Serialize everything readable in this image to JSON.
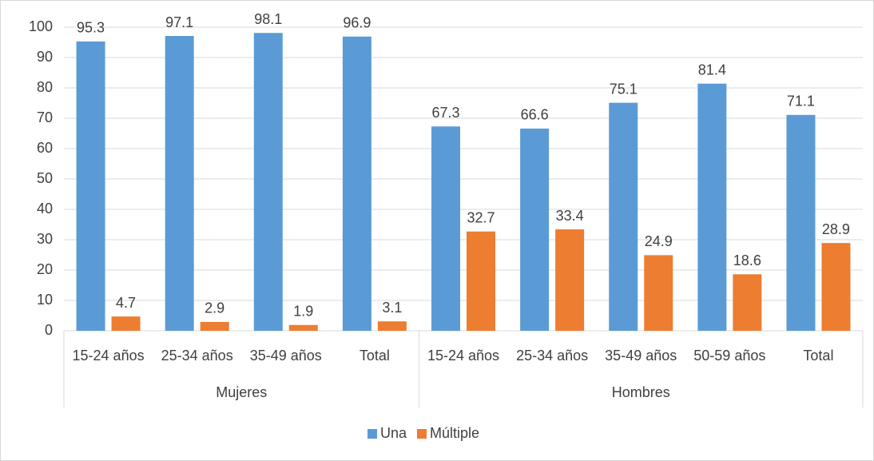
{
  "chart_data": {
    "type": "bar",
    "groups": [
      {
        "name": "Mujeres",
        "categories": [
          "15-24 años",
          "25-34 años",
          "35-49 años",
          "Total"
        ]
      },
      {
        "name": "Hombres",
        "categories": [
          "15-24 años",
          "25-34 años",
          "35-49 años",
          "50-59 años",
          "Total"
        ]
      }
    ],
    "series": [
      {
        "name": "Una",
        "color": "#5b9bd5",
        "values": [
          95.3,
          97.1,
          98.1,
          96.9,
          67.3,
          66.6,
          75.1,
          81.4,
          71.1
        ]
      },
      {
        "name": "Múltiple",
        "color": "#ed7d31",
        "values": [
          4.7,
          2.9,
          1.9,
          3.1,
          32.7,
          33.4,
          24.9,
          18.6,
          28.9
        ]
      }
    ],
    "ylim": [
      0,
      100
    ],
    "yticks": [
      0,
      10,
      20,
      30,
      40,
      50,
      60,
      70,
      80,
      90,
      100
    ],
    "grid": true,
    "legend": "bottom"
  }
}
